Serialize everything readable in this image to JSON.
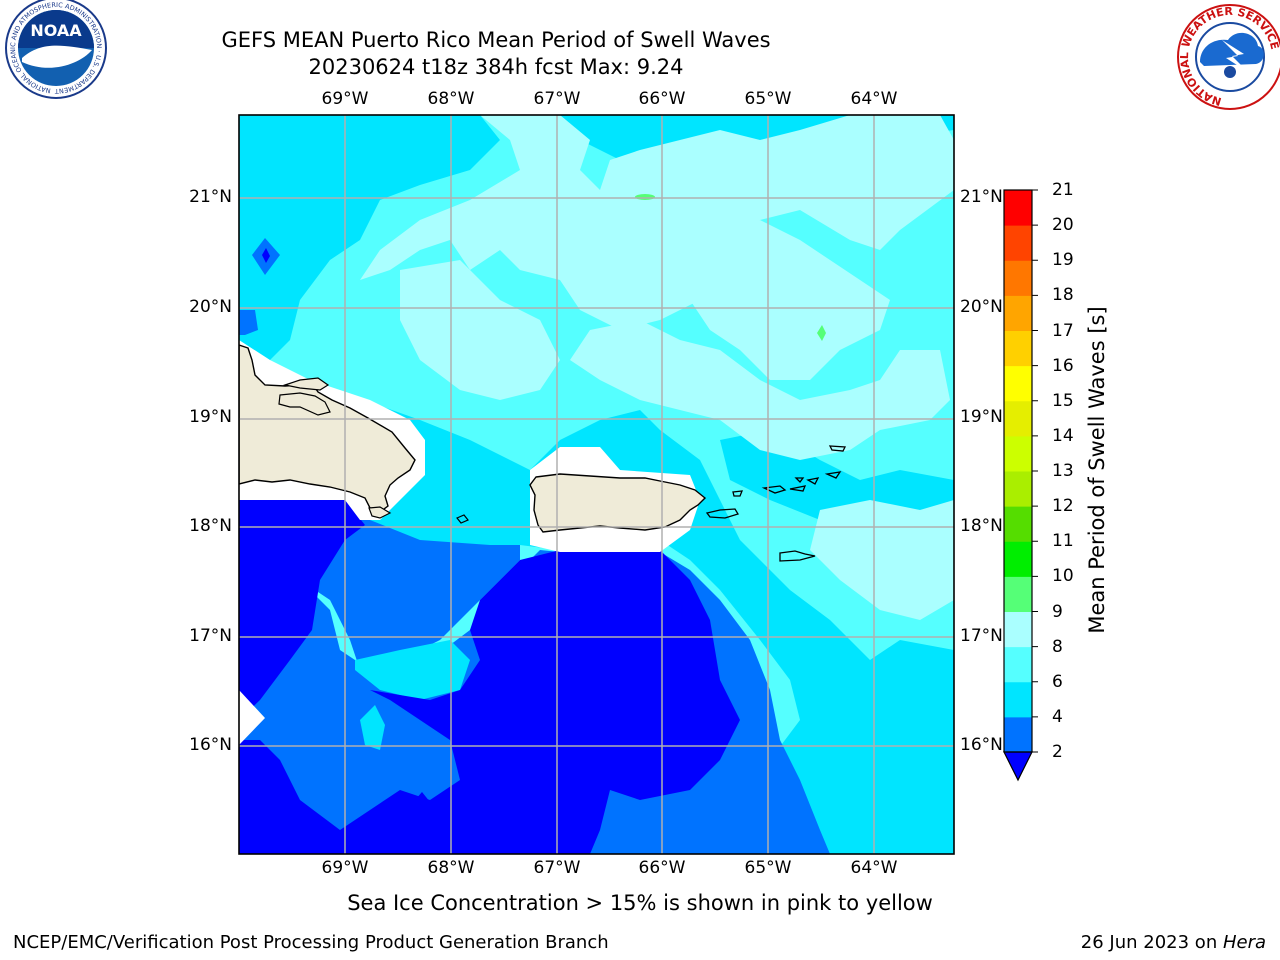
{
  "title": {
    "line1": "GEFS MEAN Puerto Rico Mean Period of Swell Waves",
    "line2": "20230624 t18z 384h fcst   Max: 9.24"
  },
  "map": {
    "lon_labels": [
      "69°W",
      "68°W",
      "67°W",
      "66°W",
      "65°W",
      "64°W"
    ],
    "lat_labels": [
      "21°N",
      "20°N",
      "19°N",
      "18°N",
      "17°N",
      "16°N"
    ],
    "extent": {
      "lon": [
        -69.99,
        -63.25
      ],
      "lat": [
        15.0,
        21.75
      ]
    },
    "grid": true
  },
  "colorbar": {
    "label": "Mean Period of Swell Waves [s]",
    "ticks": [
      "2",
      "4",
      "6",
      "8",
      "9",
      "10",
      "11",
      "12",
      "13",
      "14",
      "15",
      "16",
      "17",
      "18",
      "19",
      "20",
      "21"
    ],
    "colors": [
      "#0000ff",
      "#0073ff",
      "#00e5ff",
      "#55ffff",
      "#aaffff",
      "#55ff77",
      "#00ee00",
      "#55dd00",
      "#aaee00",
      "#ccff00",
      "#e5ee00",
      "#ffff00",
      "#ffd000",
      "#ffa500",
      "#ff7700",
      "#ff4400",
      "#ff0000"
    ],
    "extend": "min",
    "under_color": "#0000ff"
  },
  "subtitle": "Sea Ice Concentration > 15% is shown in pink to yellow",
  "footer": {
    "left": "NCEP/EMC/Verification Post Processing Product Generation Branch",
    "right_date": "26 Jun 2023 on ",
    "right_machine": "Hera"
  },
  "logos": {
    "noaa": {
      "text": "NOAA",
      "ring_text": "NATIONAL OCEANIC AND ATMOSPHERIC ADMINISTRATION · U.S. DEPARTMENT OF COMMERCE"
    },
    "nws": {
      "ring_text": "NATIONAL WEATHER SERVICE"
    }
  }
}
